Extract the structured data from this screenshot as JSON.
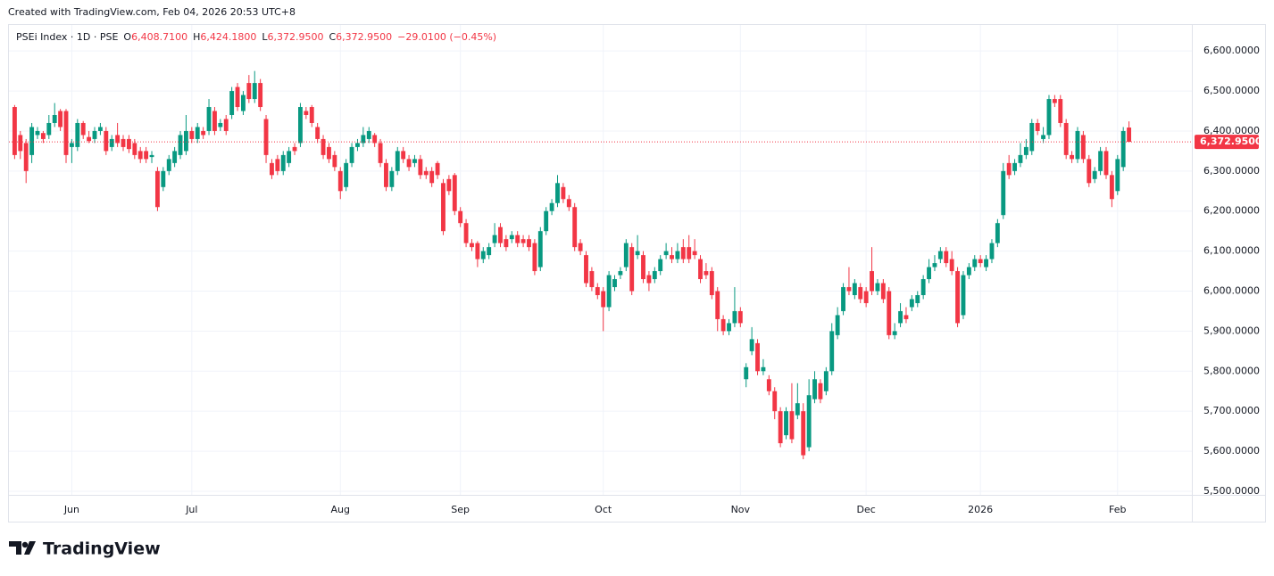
{
  "attribution": "Created with TradingView.com, Feb 04, 2026 20:53 UTC+8",
  "brand": "TradingView",
  "header": {
    "symbol": "PSEi Index · 1D · PSE",
    "ohlc": [
      {
        "key": "O",
        "value": "6,408.7100"
      },
      {
        "key": "H",
        "value": "6,424.1800"
      },
      {
        "key": "L",
        "value": "6,372.9500"
      },
      {
        "key": "C",
        "value": "6,372.9500"
      }
    ],
    "change": "−29.0100 (−0.45%)"
  },
  "chart_data": {
    "type": "candlestick",
    "up_color": "#089981",
    "down_color": "#f23645",
    "grid": true,
    "ylim": [
      5491,
      6665
    ],
    "yticks": [
      {
        "value": 5500,
        "label": "5,500.0000"
      },
      {
        "value": 5600,
        "label": "5,600.0000"
      },
      {
        "value": 5700,
        "label": "5,700.0000"
      },
      {
        "value": 5800,
        "label": "5,800.0000"
      },
      {
        "value": 5900,
        "label": "5,900.0000"
      },
      {
        "value": 6000,
        "label": "6,000.0000"
      },
      {
        "value": 6100,
        "label": "6,100.0000"
      },
      {
        "value": 6200,
        "label": "6,200.0000"
      },
      {
        "value": 6300,
        "label": "6,300.0000"
      },
      {
        "value": 6400,
        "label": "6,400.0000"
      },
      {
        "value": 6500,
        "label": "6,500.0000"
      },
      {
        "value": 6600,
        "label": "6,600.0000"
      }
    ],
    "xlim": [
      -1,
      206
    ],
    "xticks": [
      {
        "value": 10,
        "label": "Jun"
      },
      {
        "value": 31,
        "label": "Jul"
      },
      {
        "value": 57,
        "label": "Aug"
      },
      {
        "value": 78,
        "label": "Sep"
      },
      {
        "value": 103,
        "label": "Oct"
      },
      {
        "value": 127,
        "label": "Nov"
      },
      {
        "value": 149,
        "label": "Dec"
      },
      {
        "value": 169,
        "label": "2026"
      },
      {
        "value": 193,
        "label": "Feb"
      }
    ],
    "last_price": {
      "value": 6372.95,
      "label": "6,372.9500"
    },
    "values": [
      [
        6460,
        6465,
        6330,
        6340
      ],
      [
        6390,
        6400,
        6330,
        6350
      ],
      [
        6370,
        6380,
        6270,
        6300
      ],
      [
        6340,
        6420,
        6320,
        6410
      ],
      [
        6390,
        6410,
        6380,
        6400
      ],
      [
        6395,
        6400,
        6370,
        6380
      ],
      [
        6390,
        6440,
        6380,
        6420
      ],
      [
        6420,
        6470,
        6410,
        6440
      ],
      [
        6450,
        6455,
        6400,
        6410
      ],
      [
        6450,
        6455,
        6320,
        6340
      ],
      [
        6360,
        6380,
        6320,
        6370
      ],
      [
        6360,
        6430,
        6350,
        6420
      ],
      [
        6420,
        6425,
        6380,
        6390
      ],
      [
        6385,
        6400,
        6370,
        6375
      ],
      [
        6380,
        6410,
        6370,
        6400
      ],
      [
        6400,
        6420,
        6390,
        6410
      ],
      [
        6400,
        6410,
        6340,
        6350
      ],
      [
        6360,
        6390,
        6350,
        6380
      ],
      [
        6390,
        6420,
        6360,
        6370
      ],
      [
        6380,
        6390,
        6350,
        6360
      ],
      [
        6380,
        6390,
        6345,
        6355
      ],
      [
        6370,
        6380,
        6330,
        6340
      ],
      [
        6350,
        6360,
        6320,
        6330
      ],
      [
        6350,
        6360,
        6320,
        6330
      ],
      [
        6335,
        6350,
        6320,
        6340
      ],
      [
        6300,
        6310,
        6200,
        6210
      ],
      [
        6260,
        6310,
        6250,
        6300
      ],
      [
        6300,
        6340,
        6290,
        6330
      ],
      [
        6320,
        6360,
        6310,
        6350
      ],
      [
        6340,
        6400,
        6330,
        6390
      ],
      [
        6350,
        6440,
        6340,
        6400
      ],
      [
        6400,
        6410,
        6370,
        6380
      ],
      [
        6380,
        6420,
        6370,
        6410
      ],
      [
        6400,
        6410,
        6380,
        6390
      ],
      [
        6400,
        6480,
        6390,
        6460
      ],
      [
        6450,
        6460,
        6390,
        6400
      ],
      [
        6410,
        6430,
        6400,
        6420
      ],
      [
        6430,
        6440,
        6390,
        6400
      ],
      [
        6440,
        6510,
        6430,
        6500
      ],
      [
        6510,
        6520,
        6450,
        6460
      ],
      [
        6450,
        6500,
        6440,
        6490
      ],
      [
        6520,
        6540,
        6470,
        6480
      ],
      [
        6480,
        6550,
        6470,
        6520
      ],
      [
        6520,
        6530,
        6450,
        6460
      ],
      [
        6430,
        6440,
        6320,
        6340
      ],
      [
        6320,
        6330,
        6280,
        6290
      ],
      [
        6330,
        6340,
        6290,
        6300
      ],
      [
        6300,
        6350,
        6290,
        6340
      ],
      [
        6320,
        6360,
        6310,
        6350
      ],
      [
        6360,
        6370,
        6340,
        6350
      ],
      [
        6370,
        6470,
        6360,
        6460
      ],
      [
        6450,
        6460,
        6430,
        6440
      ],
      [
        6460,
        6465,
        6410,
        6420
      ],
      [
        6410,
        6420,
        6370,
        6380
      ],
      [
        6380,
        6390,
        6330,
        6340
      ],
      [
        6360,
        6370,
        6320,
        6330
      ],
      [
        6340,
        6350,
        6300,
        6310
      ],
      [
        6300,
        6310,
        6230,
        6250
      ],
      [
        6260,
        6330,
        6250,
        6320
      ],
      [
        6320,
        6370,
        6310,
        6360
      ],
      [
        6360,
        6380,
        6350,
        6370
      ],
      [
        6370,
        6410,
        6360,
        6390
      ],
      [
        6380,
        6410,
        6370,
        6400
      ],
      [
        6390,
        6395,
        6360,
        6370
      ],
      [
        6370,
        6380,
        6310,
        6320
      ],
      [
        6320,
        6330,
        6250,
        6260
      ],
      [
        6260,
        6310,
        6250,
        6300
      ],
      [
        6300,
        6360,
        6290,
        6350
      ],
      [
        6350,
        6360,
        6320,
        6330
      ],
      [
        6330,
        6340,
        6300,
        6310
      ],
      [
        6320,
        6340,
        6310,
        6330
      ],
      [
        6330,
        6340,
        6280,
        6290
      ],
      [
        6300,
        6310,
        6280,
        6290
      ],
      [
        6300,
        6310,
        6260,
        6270
      ],
      [
        6320,
        6325,
        6280,
        6290
      ],
      [
        6270,
        6280,
        6140,
        6150
      ],
      [
        6280,
        6290,
        6240,
        6250
      ],
      [
        6290,
        6295,
        6190,
        6200
      ],
      [
        6200,
        6210,
        6160,
        6170
      ],
      [
        6170,
        6180,
        6110,
        6120
      ],
      [
        6120,
        6130,
        6100,
        6110
      ],
      [
        6120,
        6125,
        6060,
        6080
      ],
      [
        6080,
        6110,
        6070,
        6100
      ],
      [
        6090,
        6120,
        6080,
        6110
      ],
      [
        6120,
        6170,
        6110,
        6140
      ],
      [
        6160,
        6170,
        6110,
        6120
      ],
      [
        6130,
        6140,
        6100,
        6110
      ],
      [
        6130,
        6150,
        6120,
        6140
      ],
      [
        6140,
        6150,
        6110,
        6120
      ],
      [
        6130,
        6140,
        6110,
        6120
      ],
      [
        6130,
        6140,
        6100,
        6110
      ],
      [
        6120,
        6130,
        6040,
        6050
      ],
      [
        6060,
        6160,
        6050,
        6150
      ],
      [
        6150,
        6210,
        6140,
        6200
      ],
      [
        6200,
        6230,
        6190,
        6220
      ],
      [
        6220,
        6290,
        6210,
        6270
      ],
      [
        6260,
        6270,
        6220,
        6230
      ],
      [
        6230,
        6240,
        6200,
        6210
      ],
      [
        6210,
        6220,
        6100,
        6110
      ],
      [
        6120,
        6130,
        6090,
        6100
      ],
      [
        6090,
        6100,
        6010,
        6020
      ],
      [
        6050,
        6060,
        6000,
        6010
      ],
      [
        6010,
        6020,
        5980,
        5990
      ],
      [
        6000,
        6010,
        5900,
        5960
      ],
      [
        5960,
        6050,
        5950,
        6040
      ],
      [
        6010,
        6040,
        6000,
        6030
      ],
      [
        6040,
        6060,
        6030,
        6050
      ],
      [
        6060,
        6130,
        6050,
        6120
      ],
      [
        6110,
        6120,
        5990,
        6000
      ],
      [
        6090,
        6140,
        6080,
        6100
      ],
      [
        6090,
        6100,
        6020,
        6030
      ],
      [
        6040,
        6050,
        6000,
        6020
      ],
      [
        6030,
        6060,
        6020,
        6050
      ],
      [
        6050,
        6090,
        6040,
        6080
      ],
      [
        6090,
        6120,
        6080,
        6100
      ],
      [
        6090,
        6110,
        6070,
        6080
      ],
      [
        6080,
        6120,
        6070,
        6100
      ],
      [
        6110,
        6130,
        6070,
        6080
      ],
      [
        6110,
        6140,
        6070,
        6080
      ],
      [
        6100,
        6130,
        6080,
        6090
      ],
      [
        6080,
        6090,
        6020,
        6030
      ],
      [
        6050,
        6070,
        6030,
        6040
      ],
      [
        6050,
        6060,
        5980,
        5990
      ],
      [
        6000,
        6010,
        5900,
        5930
      ],
      [
        5930,
        5940,
        5890,
        5900
      ],
      [
        5900,
        5930,
        5890,
        5920
      ],
      [
        5920,
        6010,
        5910,
        5950
      ],
      [
        5950,
        5960,
        5910,
        5920
      ],
      [
        5780,
        5820,
        5760,
        5810
      ],
      [
        5850,
        5910,
        5840,
        5880
      ],
      [
        5870,
        5880,
        5790,
        5800
      ],
      [
        5800,
        5830,
        5790,
        5810
      ],
      [
        5780,
        5790,
        5740,
        5750
      ],
      [
        5750,
        5760,
        5680,
        5700
      ],
      [
        5700,
        5710,
        5610,
        5620
      ],
      [
        5640,
        5710,
        5630,
        5700
      ],
      [
        5700,
        5770,
        5620,
        5630
      ],
      [
        5690,
        5770,
        5680,
        5720
      ],
      [
        5700,
        5720,
        5580,
        5590
      ],
      [
        5610,
        5780,
        5600,
        5740
      ],
      [
        5730,
        5800,
        5720,
        5780
      ],
      [
        5770,
        5780,
        5720,
        5730
      ],
      [
        5750,
        5810,
        5740,
        5800
      ],
      [
        5800,
        5920,
        5790,
        5900
      ],
      [
        5890,
        5960,
        5880,
        5940
      ],
      [
        5950,
        6020,
        5940,
        6010
      ],
      [
        6010,
        6060,
        5990,
        6000
      ],
      [
        5990,
        6030,
        5980,
        6020
      ],
      [
        6010,
        6020,
        5970,
        5980
      ],
      [
        6000,
        6010,
        5960,
        5970
      ],
      [
        6050,
        6110,
        5990,
        6000
      ],
      [
        6000,
        6030,
        5990,
        6020
      ],
      [
        6020,
        6030,
        5970,
        5980
      ],
      [
        6000,
        6010,
        5880,
        5890
      ],
      [
        5890,
        5920,
        5880,
        5900
      ],
      [
        5920,
        5970,
        5910,
        5950
      ],
      [
        5940,
        5960,
        5920,
        5930
      ],
      [
        5960,
        5990,
        5950,
        5980
      ],
      [
        5970,
        6000,
        5960,
        5990
      ],
      [
        5990,
        6040,
        5980,
        6030
      ],
      [
        6030,
        6080,
        6020,
        6060
      ],
      [
        6060,
        6090,
        6050,
        6070
      ],
      [
        6080,
        6110,
        6070,
        6100
      ],
      [
        6100,
        6110,
        6060,
        6070
      ],
      [
        6080,
        6100,
        6040,
        6050
      ],
      [
        6050,
        6060,
        5910,
        5920
      ],
      [
        5940,
        6050,
        5930,
        6040
      ],
      [
        6040,
        6070,
        6030,
        6060
      ],
      [
        6060,
        6090,
        6050,
        6080
      ],
      [
        6080,
        6090,
        6060,
        6070
      ],
      [
        6060,
        6090,
        6050,
        6080
      ],
      [
        6080,
        6130,
        6070,
        6120
      ],
      [
        6120,
        6180,
        6110,
        6170
      ],
      [
        6190,
        6320,
        6180,
        6300
      ],
      [
        6320,
        6340,
        6280,
        6290
      ],
      [
        6300,
        6330,
        6290,
        6320
      ],
      [
        6320,
        6370,
        6310,
        6340
      ],
      [
        6340,
        6380,
        6330,
        6360
      ],
      [
        6350,
        6430,
        6340,
        6420
      ],
      [
        6420,
        6430,
        6390,
        6400
      ],
      [
        6380,
        6410,
        6370,
        6390
      ],
      [
        6390,
        6490,
        6380,
        6480
      ],
      [
        6480,
        6490,
        6460,
        6470
      ],
      [
        6480,
        6490,
        6410,
        6420
      ],
      [
        6420,
        6430,
        6330,
        6340
      ],
      [
        6340,
        6350,
        6320,
        6330
      ],
      [
        6330,
        6410,
        6320,
        6400
      ],
      [
        6390,
        6400,
        6320,
        6330
      ],
      [
        6330,
        6340,
        6260,
        6270
      ],
      [
        6280,
        6310,
        6270,
        6300
      ],
      [
        6300,
        6360,
        6290,
        6350
      ],
      [
        6350,
        6360,
        6280,
        6290
      ],
      [
        6290,
        6300,
        6210,
        6230
      ],
      [
        6250,
        6340,
        6240,
        6330
      ],
      [
        6310,
        6410,
        6300,
        6400
      ],
      [
        6408.71,
        6424.18,
        6372.95,
        6372.95
      ]
    ]
  }
}
